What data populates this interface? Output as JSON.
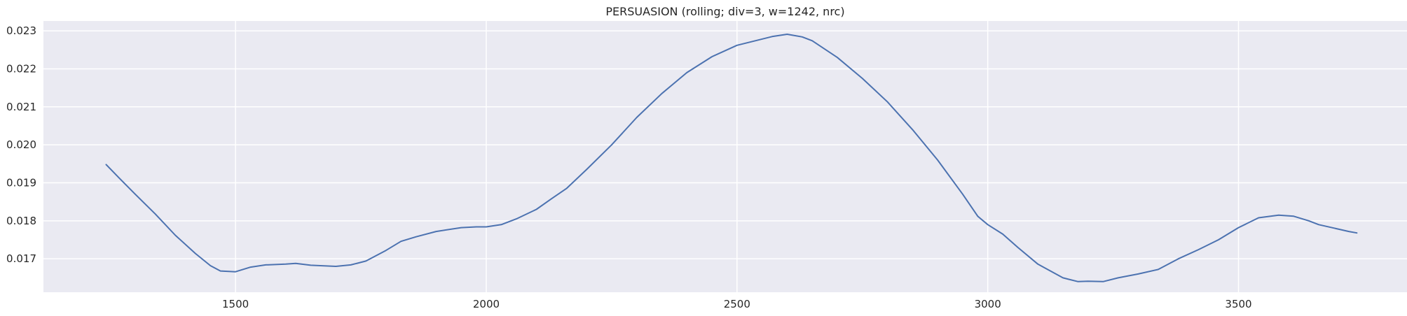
{
  "chart_data": {
    "type": "line",
    "title": "PERSUASION  (rolling; div=3, w=1242, nrc)",
    "xlabel": "",
    "ylabel": "",
    "xlim": [
      1117,
      3836
    ],
    "ylim": [
      0.01612,
      0.02326
    ],
    "xticks": [
      1500,
      2000,
      2500,
      3000,
      3500
    ],
    "xtick_labels": [
      "1500",
      "2000",
      "2500",
      "3000",
      "3500"
    ],
    "yticks": [
      0.017,
      0.018,
      0.019,
      0.02,
      0.021,
      0.022,
      0.023
    ],
    "ytick_labels": [
      "0.017",
      "0.018",
      "0.019",
      "0.020",
      "0.021",
      "0.022",
      "0.023"
    ],
    "grid": true,
    "legend": "none",
    "colors": {
      "background": "#eaeaf2",
      "grid": "#ffffff",
      "line": "#4c72b0",
      "text": "#262626"
    },
    "series": [
      {
        "x": [
          1242,
          1270,
          1300,
          1340,
          1380,
          1420,
          1450,
          1470,
          1500,
          1530,
          1560,
          1600,
          1620,
          1650,
          1700,
          1730,
          1760,
          1800,
          1830,
          1860,
          1900,
          1950,
          1980,
          2000,
          2030,
          2060,
          2100,
          2130,
          2160,
          2200,
          2250,
          2300,
          2350,
          2400,
          2450,
          2500,
          2540,
          2570,
          2600,
          2630,
          2650,
          2700,
          2750,
          2800,
          2850,
          2900,
          2950,
          2980,
          3000,
          3030,
          3060,
          3100,
          3150,
          3180,
          3200,
          3230,
          3260,
          3300,
          3340,
          3380,
          3420,
          3460,
          3500,
          3540,
          3580,
          3610,
          3640,
          3660,
          3690,
          3720,
          3736
        ],
        "y": [
          0.01948,
          0.0191,
          0.0187,
          0.01818,
          0.01762,
          0.01714,
          0.01682,
          0.01668,
          0.01666,
          0.01678,
          0.01684,
          0.01686,
          0.01688,
          0.01683,
          0.0168,
          0.01684,
          0.01694,
          0.01722,
          0.01746,
          0.01758,
          0.01772,
          0.01782,
          0.01784,
          0.01784,
          0.0179,
          0.01805,
          0.0183,
          0.01858,
          0.01885,
          0.01935,
          0.02,
          0.02072,
          0.02135,
          0.0219,
          0.02232,
          0.02262,
          0.02275,
          0.02285,
          0.02291,
          0.02284,
          0.02274,
          0.0223,
          0.02175,
          0.02113,
          0.0204,
          0.0196,
          0.0187,
          0.01812,
          0.0179,
          0.01765,
          0.0173,
          0.01686,
          0.0165,
          0.0164,
          0.01641,
          0.0164,
          0.0165,
          0.0166,
          0.01672,
          0.017,
          0.01724,
          0.0175,
          0.01782,
          0.01808,
          0.01815,
          0.01812,
          0.018,
          0.0179,
          0.01781,
          0.01772,
          0.01768
        ]
      }
    ]
  }
}
